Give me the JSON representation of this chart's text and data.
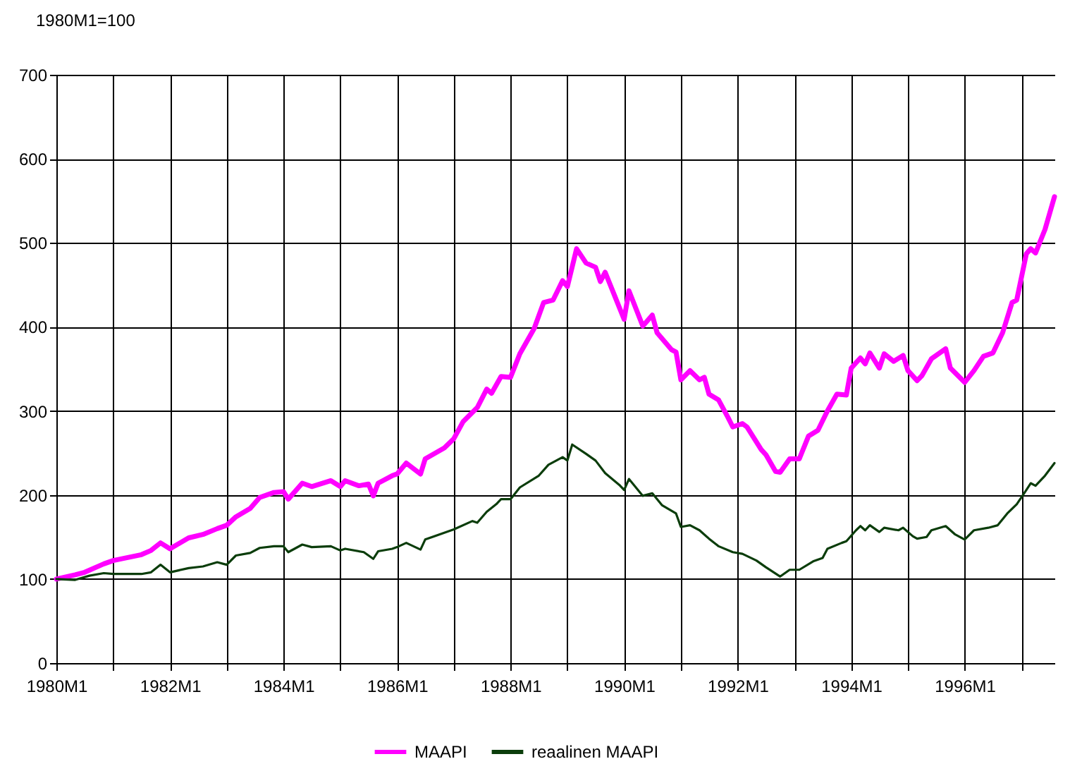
{
  "chart_data": {
    "type": "line",
    "ylabel": "1980M1=100",
    "xlim": [
      "1980-01",
      "1997-08"
    ],
    "ylim": [
      0,
      700
    ],
    "yticks": [
      0,
      100,
      200,
      300,
      400,
      500,
      600,
      700
    ],
    "xticks": [
      {
        "value": "1980-01",
        "label": "1980M1"
      },
      {
        "value": "1981-01",
        "label": null
      },
      {
        "value": "1982-01",
        "label": "1982M1"
      },
      {
        "value": "1983-01",
        "label": null
      },
      {
        "value": "1984-01",
        "label": "1984M1"
      },
      {
        "value": "1985-01",
        "label": null
      },
      {
        "value": "1986-01",
        "label": "1986M1"
      },
      {
        "value": "1987-01",
        "label": null
      },
      {
        "value": "1988-01",
        "label": "1988M1"
      },
      {
        "value": "1989-01",
        "label": null
      },
      {
        "value": "1990-01",
        "label": "1990M1"
      },
      {
        "value": "1991-01",
        "label": null
      },
      {
        "value": "1992-01",
        "label": "1992M1"
      },
      {
        "value": "1993-01",
        "label": null
      },
      {
        "value": "1994-01",
        "label": "1994M1"
      },
      {
        "value": "1995-01",
        "label": null
      },
      {
        "value": "1996-01",
        "label": "1996M1"
      },
      {
        "value": "1997-01",
        "label": null
      }
    ],
    "grid": true,
    "legend": "bottom",
    "marker": "none",
    "line_style": "solid",
    "series": [
      {
        "name": "MAAPI",
        "color": "#ff00ff",
        "x": [
          "1980-01",
          "1980-05",
          "1980-07",
          "1980-11",
          "1981-01",
          "1981-07",
          "1981-09",
          "1981-11",
          "1982-01",
          "1982-05",
          "1982-08",
          "1982-11",
          "1983-01",
          "1983-03",
          "1983-06",
          "1983-08",
          "1983-11",
          "1984-01",
          "1984-02",
          "1984-05",
          "1984-07",
          "1984-11",
          "1985-01",
          "1985-02",
          "1985-05",
          "1985-07",
          "1985-08",
          "1985-09",
          "1985-12",
          "1986-01",
          "1986-03",
          "1986-06",
          "1986-07",
          "1986-11",
          "1987-01",
          "1987-03",
          "1987-06",
          "1987-08",
          "1987-09",
          "1987-11",
          "1988-01",
          "1988-03",
          "1988-06",
          "1988-08",
          "1988-10",
          "1988-12",
          "1989-01",
          "1989-03",
          "1989-05",
          "1989-07",
          "1989-08",
          "1989-09",
          "1989-11",
          "1990-01",
          "1990-02",
          "1990-05",
          "1990-07",
          "1990-08",
          "1990-11",
          "1990-12",
          "1991-01",
          "1991-03",
          "1991-05",
          "1991-06",
          "1991-07",
          "1991-09",
          "1991-11",
          "1991-12",
          "1992-02",
          "1992-03",
          "1992-06",
          "1992-07",
          "1992-09",
          "1992-10",
          "1992-12",
          "1993-02",
          "1993-04",
          "1993-06",
          "1993-08",
          "1993-10",
          "1993-12",
          "1994-01",
          "1994-03",
          "1994-04",
          "1994-05",
          "1994-07",
          "1994-08",
          "1994-10",
          "1994-12",
          "1995-01",
          "1995-03",
          "1995-04",
          "1995-06",
          "1995-09",
          "1995-10",
          "1996-01",
          "1996-03",
          "1996-05",
          "1996-07",
          "1996-09",
          "1996-11",
          "1996-12",
          "1997-02",
          "1997-03",
          "1997-04",
          "1997-06",
          "1997-08"
        ],
        "values": [
          100,
          105,
          108,
          118,
          122,
          129,
          134,
          143,
          136,
          149,
          153,
          160,
          164,
          174,
          184,
          197,
          203,
          204,
          195,
          214,
          210,
          217,
          210,
          217,
          211,
          213,
          199,
          214,
          223,
          225,
          238,
          225,
          243,
          256,
          267,
          287,
          304,
          326,
          321,
          341,
          340,
          368,
          398,
          429,
          432,
          455,
          448,
          493,
          476,
          471,
          454,
          465,
          437,
          409,
          443,
          401,
          414,
          393,
          373,
          370,
          337,
          348,
          337,
          340,
          320,
          313,
          292,
          281,
          285,
          281,
          254,
          248,
          228,
          227,
          243,
          243,
          270,
          277,
          300,
          320,
          319,
          351,
          363,
          356,
          369,
          351,
          368,
          359,
          366,
          348,
          336,
          342,
          362,
          374,
          351,
          334,
          348,
          365,
          369,
          393,
          429,
          432,
          487,
          493,
          488,
          516,
          555
        ]
      },
      {
        "name": "reaalinen MAAPI",
        "color": "#0b3d0b",
        "x": [
          "1980-01",
          "1980-05",
          "1980-08",
          "1980-11",
          "1981-01",
          "1981-07",
          "1981-09",
          "1981-11",
          "1982-01",
          "1982-05",
          "1982-08",
          "1982-11",
          "1983-01",
          "1983-03",
          "1983-06",
          "1983-08",
          "1983-11",
          "1984-01",
          "1984-02",
          "1984-05",
          "1984-07",
          "1984-11",
          "1985-01",
          "1985-02",
          "1985-06",
          "1985-08",
          "1985-09",
          "1985-12",
          "1986-01",
          "1986-03",
          "1986-06",
          "1986-07",
          "1986-11",
          "1987-01",
          "1987-05",
          "1987-06",
          "1987-08",
          "1987-10",
          "1987-11",
          "1988-01",
          "1988-03",
          "1988-07",
          "1988-09",
          "1988-12",
          "1989-01",
          "1989-02",
          "1989-05",
          "1989-07",
          "1989-09",
          "1989-12",
          "1990-01",
          "1990-02",
          "1990-05",
          "1990-07",
          "1990-09",
          "1990-12",
          "1991-01",
          "1991-03",
          "1991-05",
          "1991-07",
          "1991-09",
          "1991-12",
          "1992-02",
          "1992-05",
          "1992-07",
          "1992-10",
          "1992-12",
          "1993-02",
          "1993-05",
          "1993-07",
          "1993-08",
          "1993-11",
          "1993-12",
          "1994-02",
          "1994-03",
          "1994-04",
          "1994-05",
          "1994-07",
          "1994-08",
          "1994-11",
          "1994-12",
          "1995-02",
          "1995-03",
          "1995-05",
          "1995-06",
          "1995-09",
          "1995-11",
          "1996-01",
          "1996-03",
          "1996-06",
          "1996-08",
          "1996-10",
          "1996-12",
          "1997-02",
          "1997-03",
          "1997-04",
          "1997-06",
          "1997-08"
        ],
        "values": [
          100,
          99,
          104,
          107,
          106,
          106,
          108,
          117,
          108,
          113,
          115,
          120,
          117,
          128,
          131,
          137,
          139,
          139,
          132,
          141,
          138,
          139,
          134,
          136,
          132,
          124,
          133,
          136,
          138,
          143,
          135,
          147,
          155,
          159,
          169,
          167,
          180,
          189,
          195,
          195,
          209,
          223,
          236,
          245,
          241,
          260,
          249,
          241,
          226,
          212,
          206,
          219,
          199,
          202,
          188,
          178,
          162,
          164,
          158,
          148,
          139,
          132,
          130,
          122,
          114,
          103,
          111,
          111,
          121,
          125,
          136,
          143,
          145,
          158,
          163,
          158,
          164,
          156,
          161,
          158,
          161,
          151,
          148,
          150,
          158,
          163,
          153,
          147,
          158,
          161,
          164,
          178,
          189,
          206,
          214,
          211,
          223,
          238
        ]
      }
    ]
  }
}
